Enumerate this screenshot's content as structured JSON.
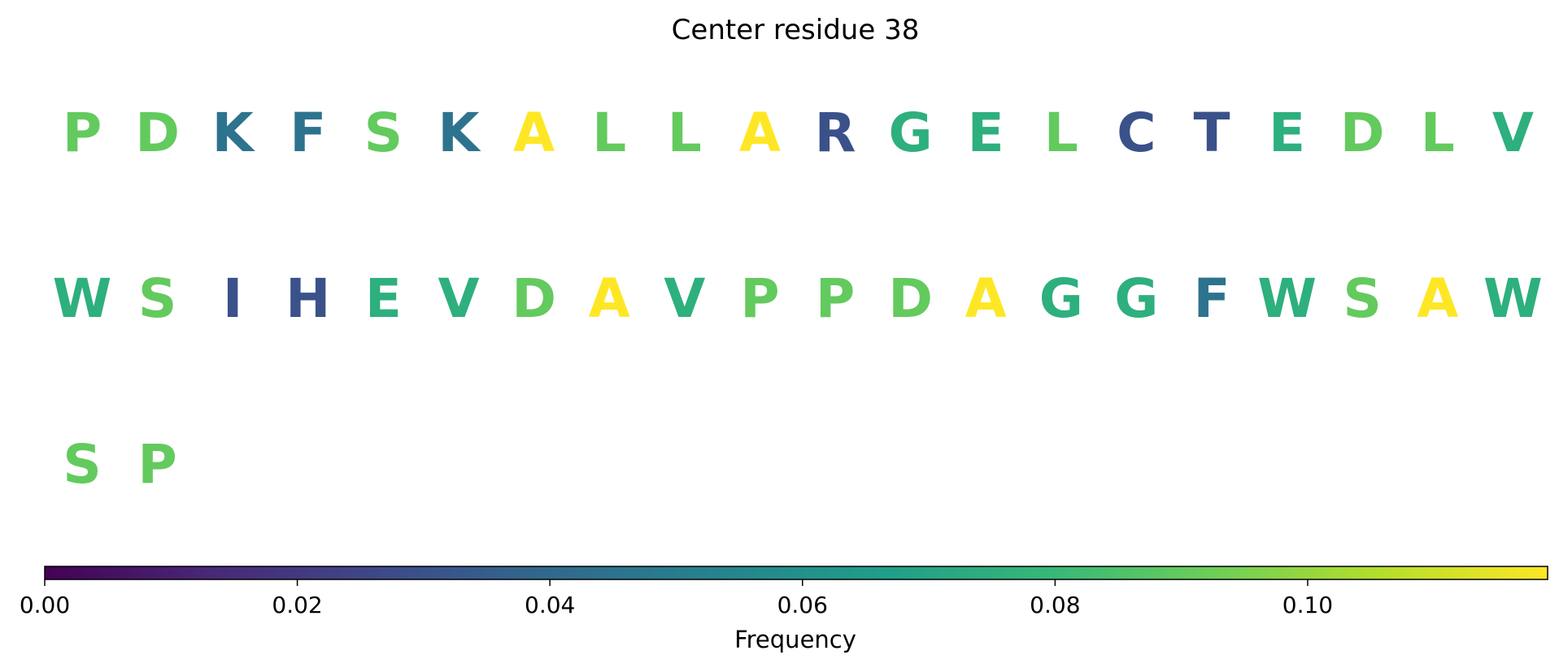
{
  "chart_data": {
    "type": "heatmap",
    "title": "Center residue 38",
    "columns": 20,
    "residues": [
      {
        "letter": "P",
        "value": 0.09
      },
      {
        "letter": "D",
        "value": 0.09
      },
      {
        "letter": "K",
        "value": 0.045
      },
      {
        "letter": "F",
        "value": 0.045
      },
      {
        "letter": "S",
        "value": 0.09
      },
      {
        "letter": "K",
        "value": 0.045
      },
      {
        "letter": "A",
        "value": 0.119
      },
      {
        "letter": "L",
        "value": 0.09
      },
      {
        "letter": "L",
        "value": 0.09
      },
      {
        "letter": "A",
        "value": 0.119
      },
      {
        "letter": "R",
        "value": 0.03
      },
      {
        "letter": "G",
        "value": 0.075
      },
      {
        "letter": "E",
        "value": 0.075
      },
      {
        "letter": "L",
        "value": 0.09
      },
      {
        "letter": "C",
        "value": 0.03
      },
      {
        "letter": "T",
        "value": 0.03
      },
      {
        "letter": "E",
        "value": 0.075
      },
      {
        "letter": "D",
        "value": 0.09
      },
      {
        "letter": "L",
        "value": 0.09
      },
      {
        "letter": "V",
        "value": 0.075
      },
      {
        "letter": "W",
        "value": 0.075
      },
      {
        "letter": "S",
        "value": 0.09
      },
      {
        "letter": "I",
        "value": 0.03
      },
      {
        "letter": "H",
        "value": 0.03
      },
      {
        "letter": "E",
        "value": 0.075
      },
      {
        "letter": "V",
        "value": 0.075
      },
      {
        "letter": "D",
        "value": 0.09
      },
      {
        "letter": "A",
        "value": 0.119
      },
      {
        "letter": "V",
        "value": 0.075
      },
      {
        "letter": "P",
        "value": 0.09
      },
      {
        "letter": "P",
        "value": 0.09
      },
      {
        "letter": "D",
        "value": 0.09
      },
      {
        "letter": "A",
        "value": 0.119
      },
      {
        "letter": "G",
        "value": 0.075
      },
      {
        "letter": "G",
        "value": 0.075
      },
      {
        "letter": "F",
        "value": 0.045
      },
      {
        "letter": "W",
        "value": 0.075
      },
      {
        "letter": "S",
        "value": 0.09
      },
      {
        "letter": "A",
        "value": 0.119
      },
      {
        "letter": "W",
        "value": 0.075
      },
      {
        "letter": "S",
        "value": 0.09
      },
      {
        "letter": "P",
        "value": 0.09
      }
    ],
    "colorbar": {
      "label": "Frequency",
      "colormap": "viridis",
      "range": [
        0,
        0.119
      ],
      "ticks": [
        0.0,
        0.02,
        0.04,
        0.06,
        0.08,
        0.1
      ],
      "tick_labels": [
        "0.00",
        "0.02",
        "0.04",
        "0.06",
        "0.08",
        "0.10"
      ]
    }
  }
}
